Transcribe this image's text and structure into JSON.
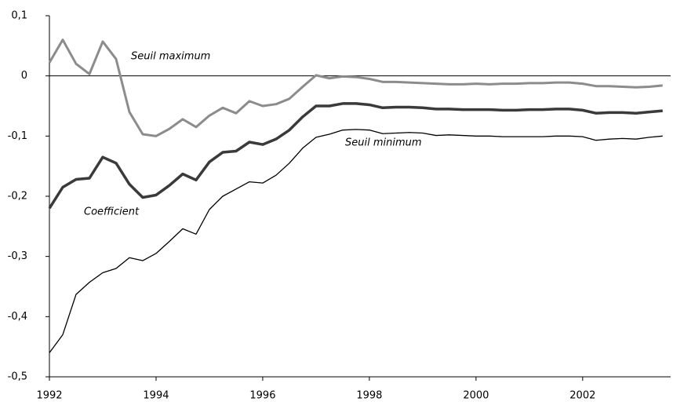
{
  "chart_data": {
    "type": "line",
    "x": [
      1992,
      1992.25,
      1992.5,
      1992.75,
      1993,
      1993.25,
      1993.5,
      1993.75,
      1994,
      1994.25,
      1994.5,
      1994.75,
      1995,
      1995.25,
      1995.5,
      1995.75,
      1996,
      1996.25,
      1996.5,
      1996.75,
      1997,
      1997.25,
      1997.5,
      1997.75,
      1998,
      1998.25,
      1998.5,
      1998.75,
      1999,
      1999.25,
      1999.5,
      1999.75,
      2000,
      2000.25,
      2000.5,
      2000.75,
      2001,
      2001.25,
      2001.5,
      2001.75,
      2002,
      2002.25,
      2002.5,
      2002.75,
      2003,
      2003.25,
      2003.5
    ],
    "series": [
      {
        "name": "Seuil maximum",
        "color": "#8c8c8c",
        "values": [
          0.022,
          0.06,
          0.02,
          0.003,
          0.057,
          0.028,
          -0.06,
          -0.097,
          -0.1,
          -0.088,
          -0.072,
          -0.085,
          -0.066,
          -0.053,
          -0.062,
          -0.042,
          -0.05,
          -0.047,
          -0.038,
          -0.018,
          0.001,
          -0.004,
          -0.001,
          -0.002,
          -0.005,
          -0.01,
          -0.01,
          -0.011,
          -0.012,
          -0.013,
          -0.014,
          -0.014,
          -0.013,
          -0.014,
          -0.013,
          -0.013,
          -0.012,
          -0.012,
          -0.011,
          -0.011,
          -0.013,
          -0.017,
          -0.017,
          -0.018,
          -0.019,
          -0.018,
          -0.016
        ]
      },
      {
        "name": "Coefficient",
        "color": "#3a3a3a",
        "values": [
          -0.22,
          -0.185,
          -0.172,
          -0.17,
          -0.135,
          -0.145,
          -0.18,
          -0.202,
          -0.198,
          -0.182,
          -0.163,
          -0.173,
          -0.143,
          -0.127,
          -0.125,
          -0.11,
          -0.114,
          -0.105,
          -0.09,
          -0.068,
          -0.05,
          -0.05,
          -0.046,
          -0.046,
          -0.048,
          -0.053,
          -0.052,
          -0.052,
          -0.053,
          -0.055,
          -0.055,
          -0.056,
          -0.056,
          -0.056,
          -0.057,
          -0.057,
          -0.056,
          -0.056,
          -0.055,
          -0.055,
          -0.057,
          -0.062,
          -0.061,
          -0.061,
          -0.062,
          -0.06,
          -0.058
        ]
      },
      {
        "name": "Seuil minimum",
        "color": "#000000",
        "values": [
          -0.46,
          -0.43,
          -0.363,
          -0.343,
          -0.327,
          -0.32,
          -0.302,
          -0.307,
          -0.295,
          -0.275,
          -0.254,
          -0.263,
          -0.222,
          -0.2,
          -0.188,
          -0.176,
          -0.178,
          -0.165,
          -0.145,
          -0.12,
          -0.102,
          -0.097,
          -0.09,
          -0.089,
          -0.09,
          -0.096,
          -0.095,
          -0.094,
          -0.095,
          -0.099,
          -0.098,
          -0.099,
          -0.1,
          -0.1,
          -0.101,
          -0.101,
          -0.101,
          -0.101,
          -0.1,
          -0.1,
          -0.101,
          -0.107,
          -0.105,
          -0.104,
          -0.105,
          -0.102,
          -0.1
        ]
      }
    ],
    "xlim": [
      1992,
      2003.65
    ],
    "xticks": [
      1992,
      1994,
      1996,
      1998,
      2000,
      2002
    ],
    "ylim": [
      -0.5,
      0.1
    ],
    "yticks": [
      {
        "value": -0.5,
        "label": "-0,5"
      },
      {
        "value": -0.4,
        "label": "-0,4"
      },
      {
        "value": -0.3,
        "label": "-0,3"
      },
      {
        "value": -0.2,
        "label": "-0,2"
      },
      {
        "value": -0.1,
        "label": "-0,1"
      },
      0,
      {
        "value": 0.1,
        "label": "0,1"
      }
    ],
    "zero_line": true
  }
}
